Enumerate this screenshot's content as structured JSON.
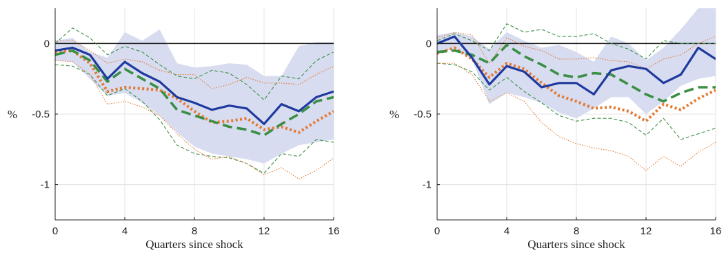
{
  "colors": {
    "band": "#d8dcf0",
    "solid": "#1f3a9e",
    "green": "#3a8f44",
    "orange": "#e27a34",
    "grid": "#e3e3e3",
    "axis": "#222222"
  },
  "chart_data": [
    {
      "type": "line",
      "xlabel": "Quarters since shock",
      "ylabel": "%",
      "xlim": [
        0,
        16
      ],
      "ylim": [
        -1.25,
        0.25
      ],
      "xticks": [
        0,
        4,
        8,
        12,
        16
      ],
      "xtick_labels": [
        "0",
        "4",
        "8",
        "12",
        "16"
      ],
      "yticks": [
        0,
        -0.5,
        -1
      ],
      "ytick_labels": [
        "0",
        "-0.5",
        "-1"
      ],
      "grid": true,
      "zero_line": true,
      "x": [
        0,
        1,
        2,
        3,
        4,
        5,
        6,
        7,
        8,
        9,
        10,
        11,
        12,
        13,
        14,
        15,
        16
      ],
      "band": {
        "upper": [
          0.02,
          0.04,
          -0.06,
          -0.1,
          0.08,
          0.02,
          0.1,
          -0.14,
          -0.17,
          -0.16,
          -0.14,
          -0.15,
          -0.23,
          -0.23,
          -0.02,
          0.01,
          0.01
        ],
        "lower": [
          -0.12,
          -0.13,
          -0.25,
          -0.37,
          -0.35,
          -0.42,
          -0.51,
          -0.63,
          -0.73,
          -0.78,
          -0.8,
          -0.82,
          -0.85,
          -0.78,
          -0.72,
          -0.7,
          -0.68
        ]
      },
      "series": [
        {
          "style": "solid",
          "values": [
            -0.05,
            -0.03,
            -0.08,
            -0.25,
            -0.13,
            -0.21,
            -0.27,
            -0.38,
            -0.42,
            -0.47,
            -0.44,
            -0.46,
            -0.57,
            -0.43,
            -0.48,
            -0.38,
            -0.34
          ]
        },
        {
          "style": "dash",
          "values": [
            -0.08,
            -0.05,
            -0.12,
            -0.27,
            -0.18,
            -0.25,
            -0.32,
            -0.47,
            -0.51,
            -0.55,
            -0.59,
            -0.61,
            -0.65,
            -0.57,
            -0.5,
            -0.41,
            -0.38
          ]
        },
        {
          "style": "dot",
          "values": [
            -0.06,
            -0.05,
            -0.14,
            -0.34,
            -0.31,
            -0.32,
            -0.33,
            -0.39,
            -0.48,
            -0.56,
            -0.55,
            -0.53,
            -0.61,
            -0.59,
            -0.63,
            -0.55,
            -0.48
          ]
        },
        {
          "style": "thin-dash-green",
          "values": [
            0.0,
            0.11,
            0.04,
            -0.08,
            -0.02,
            -0.06,
            -0.15,
            -0.23,
            -0.25,
            -0.19,
            -0.21,
            -0.29,
            -0.4,
            -0.23,
            -0.25,
            -0.12,
            -0.06
          ]
        },
        {
          "style": "thin-dash-green",
          "values": [
            -0.15,
            -0.16,
            -0.22,
            -0.37,
            -0.32,
            -0.41,
            -0.54,
            -0.72,
            -0.78,
            -0.8,
            -0.81,
            -0.85,
            -0.92,
            -0.78,
            -0.8,
            -0.68,
            -0.7
          ]
        },
        {
          "style": "thin-dot-orange",
          "values": [
            0.02,
            0.02,
            -0.05,
            -0.14,
            -0.11,
            -0.13,
            -0.19,
            -0.22,
            -0.22,
            -0.32,
            -0.29,
            -0.24,
            -0.28,
            -0.28,
            -0.29,
            -0.22,
            -0.16
          ]
        },
        {
          "style": "thin-dot-orange",
          "values": [
            -0.12,
            -0.13,
            -0.22,
            -0.43,
            -0.41,
            -0.45,
            -0.51,
            -0.64,
            -0.75,
            -0.82,
            -0.8,
            -0.85,
            -0.93,
            -0.88,
            -0.96,
            -0.9,
            -0.81
          ]
        }
      ]
    },
    {
      "type": "line",
      "xlabel": "Quarters since shock",
      "ylabel": "%",
      "xlim": [
        0,
        16
      ],
      "ylim": [
        -1.25,
        0.25
      ],
      "xticks": [
        0,
        4,
        8,
        12,
        16
      ],
      "xtick_labels": [
        "0",
        "4",
        "8",
        "12",
        "16"
      ],
      "yticks": [
        0,
        -0.5,
        -1
      ],
      "ytick_labels": [
        "0",
        "-0.5",
        "-1"
      ],
      "grid": true,
      "zero_line": true,
      "x": [
        0,
        1,
        2,
        3,
        4,
        5,
        6,
        7,
        8,
        9,
        10,
        11,
        12,
        13,
        14,
        15,
        16
      ],
      "band": {
        "upper": [
          0.06,
          0.08,
          0.05,
          -0.04,
          0.08,
          0.02,
          -0.03,
          -0.01,
          -0.06,
          -0.13,
          0.05,
          0.0,
          -0.12,
          -0.03,
          0.1,
          0.25,
          0.25
        ],
        "lower": [
          -0.06,
          -0.04,
          -0.11,
          -0.43,
          -0.35,
          -0.38,
          -0.42,
          -0.49,
          -0.53,
          -0.46,
          -0.38,
          -0.38,
          -0.5,
          -0.41,
          -0.3,
          -0.25,
          -0.23
        ]
      },
      "series": [
        {
          "style": "solid",
          "values": [
            0.0,
            0.05,
            -0.1,
            -0.29,
            -0.16,
            -0.2,
            -0.31,
            -0.28,
            -0.28,
            -0.36,
            -0.19,
            -0.16,
            -0.18,
            -0.28,
            -0.22,
            -0.03,
            -0.11
          ]
        },
        {
          "style": "dash",
          "values": [
            -0.06,
            -0.05,
            -0.08,
            -0.14,
            -0.01,
            -0.09,
            -0.15,
            -0.22,
            -0.24,
            -0.21,
            -0.22,
            -0.29,
            -0.36,
            -0.41,
            -0.35,
            -0.31,
            -0.31
          ]
        },
        {
          "style": "dot",
          "values": [
            -0.07,
            -0.03,
            -0.11,
            -0.24,
            -0.14,
            -0.18,
            -0.28,
            -0.37,
            -0.41,
            -0.46,
            -0.45,
            -0.48,
            -0.55,
            -0.43,
            -0.47,
            -0.39,
            -0.33
          ]
        },
        {
          "style": "thin-dash-green",
          "values": [
            0.02,
            0.07,
            0.02,
            -0.05,
            0.14,
            0.08,
            0.1,
            0.05,
            0.05,
            0.07,
            0.0,
            -0.04,
            -0.11,
            0.02,
            0.0,
            0.0,
            0.0
          ]
        },
        {
          "style": "thin-dash-green",
          "values": [
            -0.14,
            -0.15,
            -0.2,
            -0.33,
            -0.24,
            -0.34,
            -0.42,
            -0.51,
            -0.55,
            -0.53,
            -0.53,
            -0.56,
            -0.65,
            -0.53,
            -0.68,
            -0.64,
            -0.6
          ]
        },
        {
          "style": "thin-dot-orange",
          "values": [
            0.04,
            0.08,
            0.06,
            -0.14,
            0.04,
            -0.02,
            -0.05,
            -0.11,
            -0.11,
            -0.1,
            -0.12,
            -0.13,
            -0.18,
            -0.11,
            -0.08,
            0.0,
            0.05
          ]
        },
        {
          "style": "thin-dot-orange",
          "values": [
            -0.14,
            -0.14,
            -0.22,
            -0.41,
            -0.35,
            -0.41,
            -0.56,
            -0.66,
            -0.71,
            -0.74,
            -0.76,
            -0.8,
            -0.9,
            -0.8,
            -0.87,
            -0.77,
            -0.7
          ]
        }
      ]
    }
  ]
}
